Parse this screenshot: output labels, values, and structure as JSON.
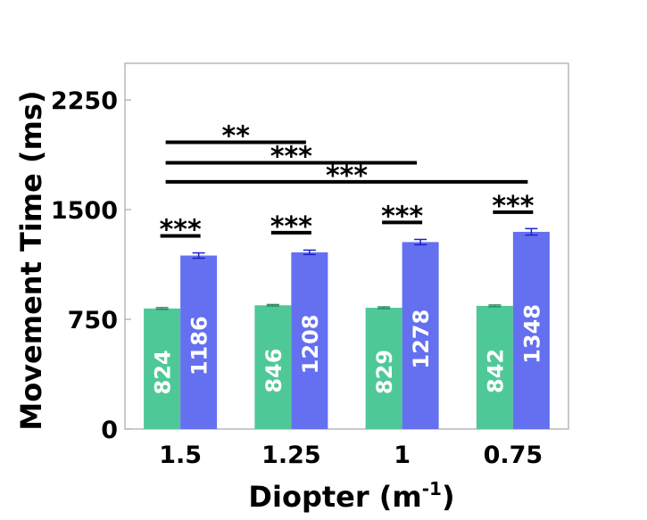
{
  "chart_data": {
    "type": "bar",
    "title": "",
    "xlabel": "Diopter (m",
    "xlabel_sup": "-1",
    "xlabel_close": ")",
    "ylabel": "Movement Time (ms)",
    "ylim": [
      0,
      2500
    ],
    "yticks": [
      "0",
      "750",
      "1500",
      "2250"
    ],
    "ytick_values": [
      0,
      750,
      1500,
      2250
    ],
    "categories": [
      "1.5",
      "1.25",
      "1",
      "0.75"
    ],
    "grid": false,
    "series": [
      {
        "color": "#4fc897",
        "values": [
          824,
          846,
          829,
          842
        ],
        "errors": [
          6,
          5,
          6,
          6
        ],
        "error_color": "#2e8a62"
      },
      {
        "color": "#6470f0",
        "values": [
          1186,
          1208,
          1278,
          1348
        ],
        "errors": [
          18,
          15,
          18,
          22
        ],
        "error_color": "#1a22c8"
      }
    ],
    "value_labels": [
      [
        "824",
        "846",
        "829",
        "842"
      ],
      [
        "1186",
        "1208",
        "1278",
        "1348"
      ]
    ],
    "within_group_significance": [
      "***",
      "***",
      "***",
      "***"
    ],
    "between_group_significance": [
      {
        "from": "1.5",
        "to": "1.25",
        "label": "**",
        "y": 1960
      },
      {
        "from": "1.5",
        "to": "1",
        "label": "***",
        "y": 1820
      },
      {
        "from": "1.5",
        "to": "0.75",
        "label": "***",
        "y": 1690
      }
    ]
  }
}
